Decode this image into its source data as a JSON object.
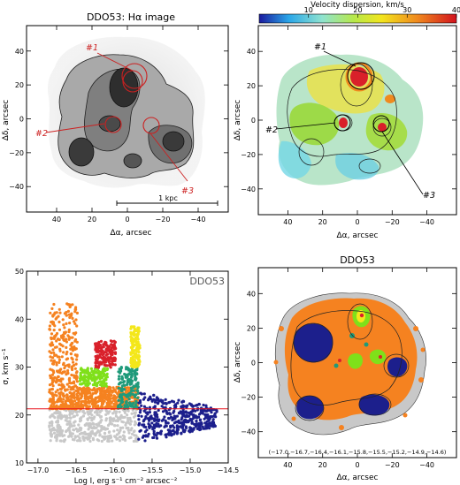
{
  "colors": {
    "orange": "#f58220",
    "gray": "#c8c8c8",
    "navy": "#1c1f8c",
    "teal": "#1f9a7a",
    "green": "#7fe01a",
    "red": "#d9202a",
    "yellow": "#f4e71a",
    "red_line": "#e8141e",
    "ha_ring": "#cc2020"
  },
  "chart_data": [
    {
      "type": "image",
      "panel": "top-left",
      "title": "DDO53: Hα image",
      "xlabel": "Δα, arcsec",
      "ylabel": "Δδ, arcsec",
      "xlim": [
        57,
        -57
      ],
      "ylim": [
        -55,
        55
      ],
      "xticks": [
        40,
        20,
        0,
        -20,
        -40
      ],
      "xtick_labels": [
        "40",
        "20",
        "0",
        "−20",
        "−40"
      ],
      "yticks": [
        -40,
        -20,
        0,
        20,
        40
      ],
      "ytick_labels": [
        "−40",
        "−20",
        "0",
        "20",
        "40"
      ],
      "scale_bar": {
        "label": "1 kpc",
        "from": -7,
        "to": -45,
        "y": -47
      },
      "regions": [
        {
          "label": "#1",
          "x": -2,
          "y": 26,
          "label_x": 12,
          "label_y": 42
        },
        {
          "label": "#2",
          "x": 9,
          "y": -1,
          "label_x": 34,
          "label_y": -8
        },
        {
          "label": "#3",
          "x": -15,
          "y": -1,
          "label_x": -32,
          "label_y": -38
        }
      ]
    },
    {
      "type": "heatmap",
      "panel": "top-right",
      "colorbar": {
        "label": "Velocity dispersion, km/s",
        "range": [
          0,
          40
        ],
        "ticks": [
          10,
          20,
          30,
          40
        ]
      },
      "xlabel": "Δα, arcsec",
      "ylabel": "Δδ, arcsec",
      "xlim": [
        57,
        -57
      ],
      "ylim": [
        -55,
        55
      ],
      "xticks": [
        40,
        20,
        0,
        -20,
        -40
      ],
      "xtick_labels": [
        "40",
        "20",
        "0",
        "−20",
        "−40"
      ],
      "yticks": [
        -40,
        -20,
        0,
        20,
        40
      ],
      "ytick_labels": [
        "−40",
        "−20",
        "0",
        "20",
        "40"
      ],
      "hot_spots": [
        {
          "label": "#1",
          "x": 2,
          "y": 25,
          "sigma": 38
        },
        {
          "label": "#2",
          "x": 9,
          "y": 0,
          "sigma": 34
        },
        {
          "label": "#3",
          "x": -15,
          "y": -1,
          "sigma": 33
        }
      ],
      "regions": [
        {
          "label": "#1",
          "x": -2,
          "y": 27,
          "label_x": 18,
          "label_y": 41
        },
        {
          "label": "#2",
          "x": 10,
          "y": -1,
          "label_x": 50,
          "label_y": -4
        },
        {
          "label": "#3",
          "x": -15,
          "y": -1,
          "label_x": -36,
          "label_y": -38
        }
      ]
    },
    {
      "type": "scatter",
      "panel": "bottom-left",
      "annotation": "DDO53",
      "xlabel": "Log I, erg s⁻¹ cm⁻² arcsec⁻²",
      "ylabel": "σ, km s⁻¹",
      "xlim": [
        -17.15,
        -14.5
      ],
      "ylim": [
        10,
        50
      ],
      "xticks": [
        -17.0,
        -16.5,
        -16.0,
        -15.5,
        -15.0,
        -14.5
      ],
      "xtick_labels": [
        "−17.0",
        "−16.5",
        "−16.0",
        "−15.5",
        "−15.0",
        "−14.5"
      ],
      "yticks": [
        10,
        20,
        30,
        40,
        50
      ],
      "ytick_labels": [
        "10",
        "20",
        "30",
        "40",
        "50"
      ],
      "hline": {
        "y": 21.3
      },
      "series": [
        {
          "color_key": "gray",
          "x_range": [
            -16.85,
            -15.68
          ],
          "y_range": [
            14.5,
            21.2
          ]
        },
        {
          "color_key": "orange",
          "x_range": [
            -16.85,
            -16.48
          ],
          "y_range": [
            21.3,
            43.5
          ]
        },
        {
          "color_key": "orange",
          "x_range": [
            -16.48,
            -15.68
          ],
          "y_range": [
            21.3,
            25.8
          ]
        },
        {
          "color_key": "green",
          "x_range": [
            -16.45,
            -16.08
          ],
          "y_range": [
            25.9,
            29.8
          ]
        },
        {
          "color_key": "red",
          "x_range": [
            -16.25,
            -15.98
          ],
          "y_range": [
            29.9,
            35.5
          ]
        },
        {
          "color_key": "teal",
          "x_range": [
            -15.95,
            -15.68
          ],
          "y_range": [
            21.3,
            30.0
          ]
        },
        {
          "color_key": "yellow",
          "x_range": [
            -15.78,
            -15.66
          ],
          "y_range": [
            30.0,
            38.5
          ]
        },
        {
          "color_key": "navy",
          "x_range": [
            -15.68,
            -14.65
          ],
          "y_range": [
            14.5,
            25.0
          ]
        }
      ]
    },
    {
      "type": "map",
      "panel": "bottom-right",
      "title": "DDO53",
      "xlabel": "Δα, arcsec",
      "ylabel": "Δδ, arcsec",
      "xlim": [
        57,
        -57
      ],
      "ylim": [
        -55,
        55
      ],
      "xticks": [
        40,
        20,
        0,
        -20,
        -40
      ],
      "xtick_labels": [
        "40",
        "20",
        "0",
        "−20",
        "−40"
      ],
      "yticks": [
        -40,
        -20,
        0,
        20,
        40
      ],
      "ytick_labels": [
        "−40",
        "−20",
        "0",
        "20",
        "40"
      ],
      "contour_levels": "(−17.0,−16.7,−16.4,−16.1,−15.8,−15.5,−15.2,−14.9,−14.6)"
    }
  ]
}
